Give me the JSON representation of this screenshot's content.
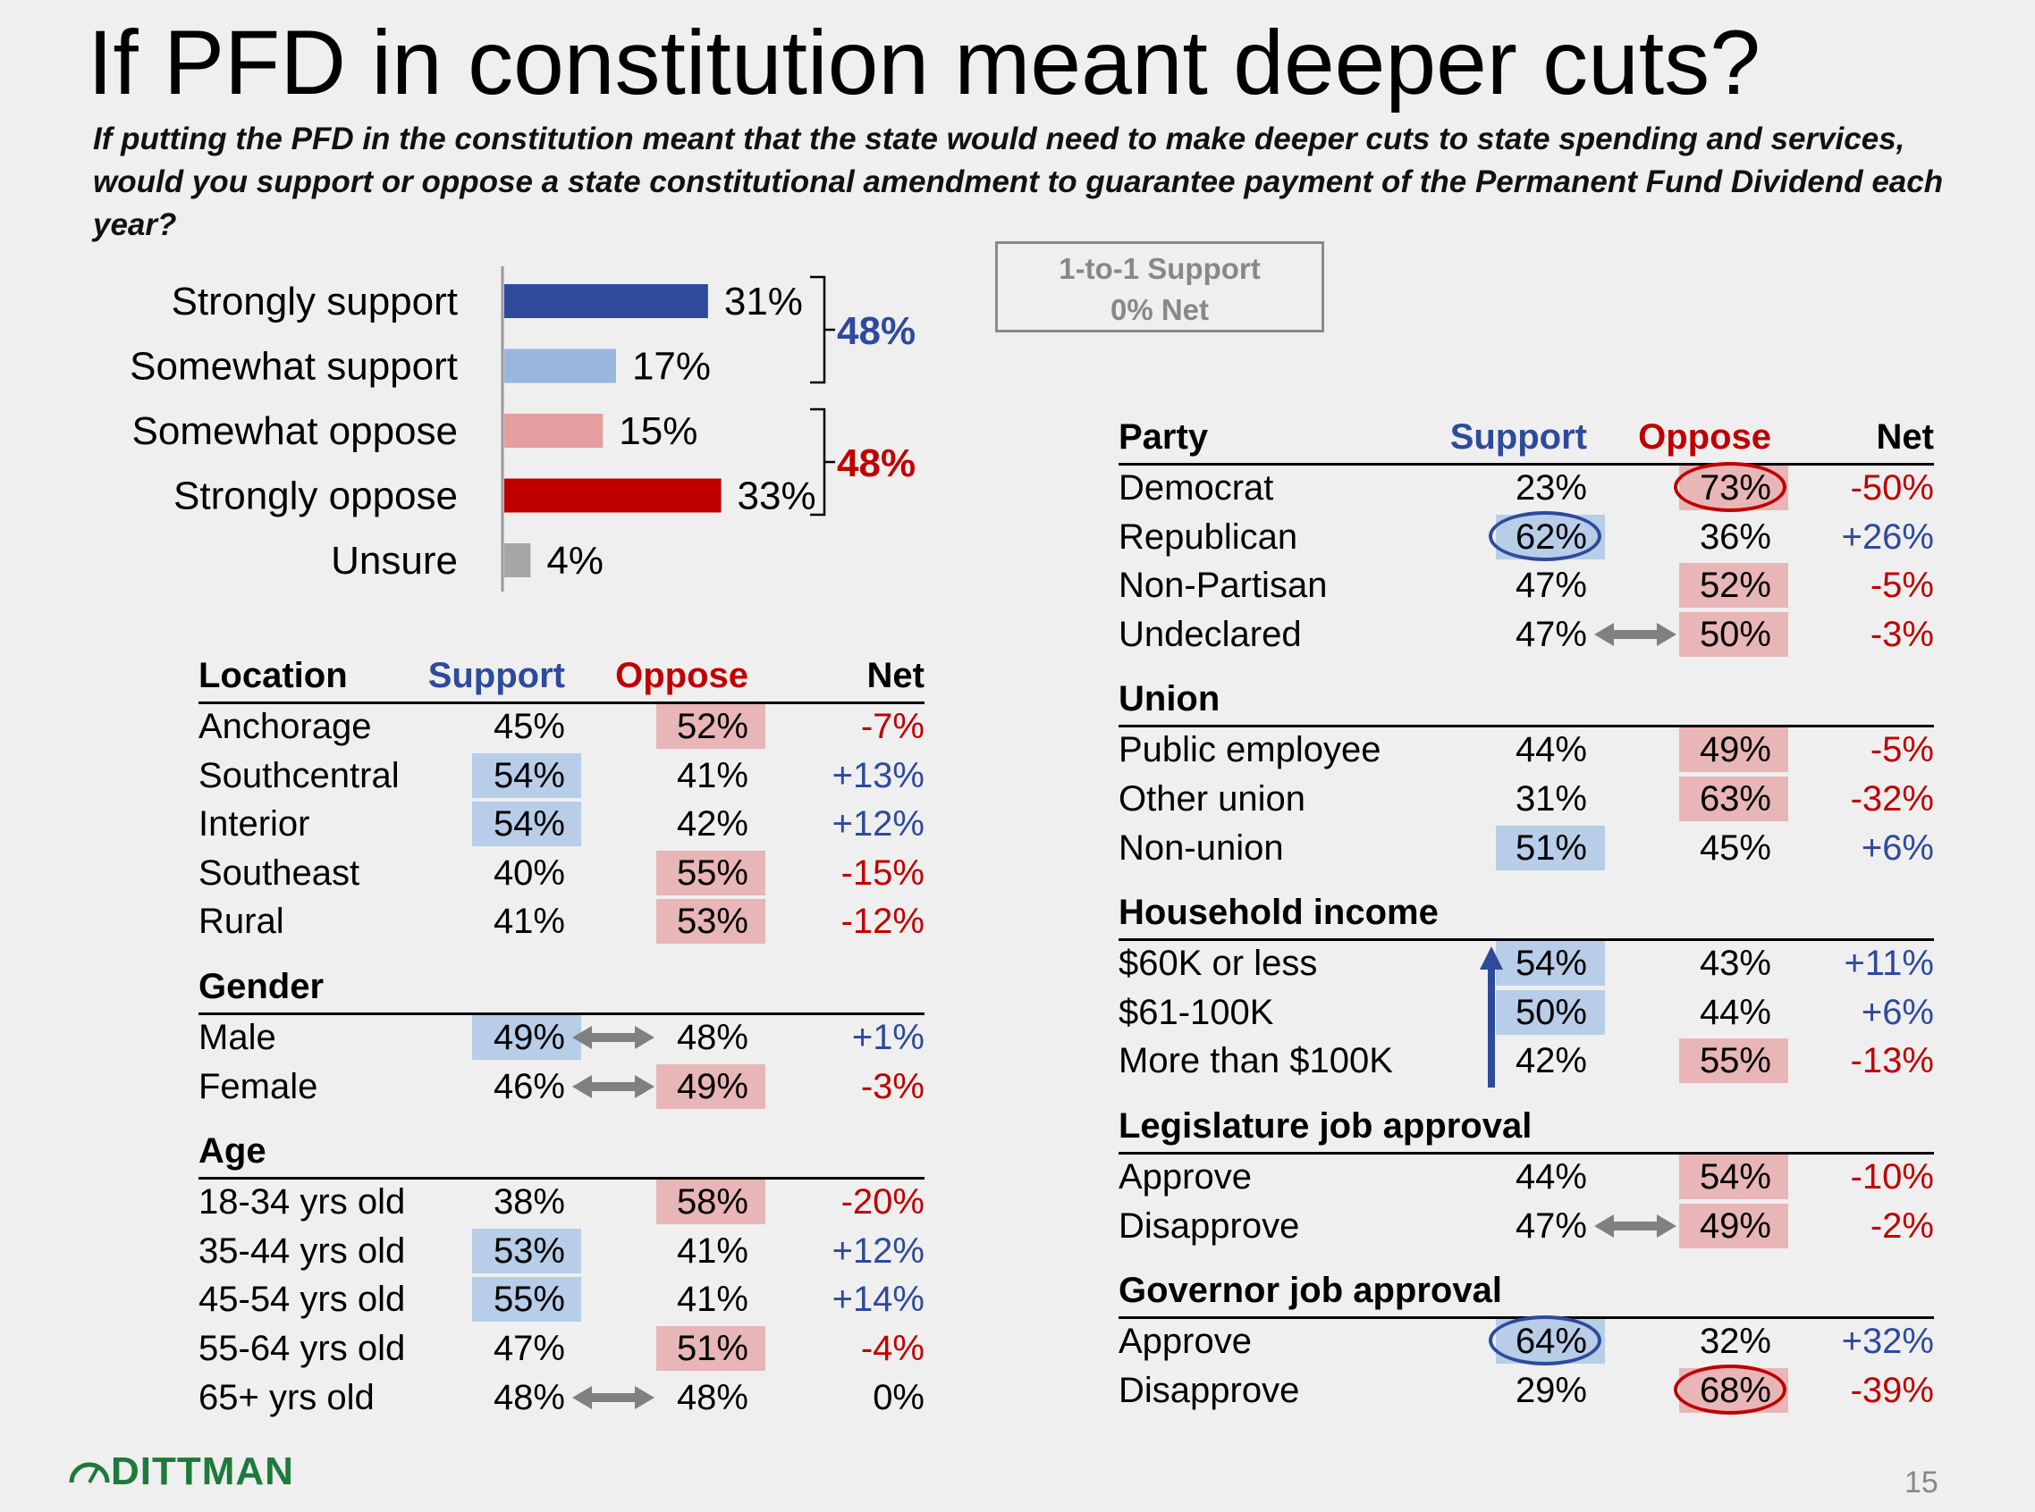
{
  "title": "If PFD in constitution meant deeper cuts?",
  "subtitle": "If putting the PFD in the constitution meant that the state would need to make deeper cuts to state spending and services, would you support or oppose a state constitutional amendment to guarantee payment of the Permanent Fund Dividend each year?",
  "summary_box": {
    "line1": "1-to-1 Support",
    "line2": "0% Net"
  },
  "chart_data": {
    "type": "bar",
    "orientation": "horizontal",
    "categories": [
      "Strongly support",
      "Somewhat support",
      "Somewhat oppose",
      "Strongly oppose",
      "Unsure"
    ],
    "values": [
      31,
      17,
      15,
      33,
      4
    ],
    "value_labels": [
      "31%",
      "17%",
      "15%",
      "33%",
      "4%"
    ],
    "bar_colors": [
      "#2e4a9c",
      "#9ab6dc",
      "#e39f9f",
      "#c00000",
      "#a6a6a6"
    ],
    "brackets": [
      {
        "label": "48%",
        "color": "#2e4a9c"
      },
      {
        "label": "48%",
        "color": "#c00000"
      }
    ],
    "xlim": [
      0,
      35
    ]
  },
  "colors": {
    "support": "#2e4a9c",
    "oppose": "#c00000",
    "hl_support": "#b7cde8",
    "hl_oppose": "#e8b6b6"
  },
  "left_table": {
    "sections": [
      {
        "header": "Location",
        "sup": "Support",
        "opp": "Oppose",
        "net": "Net",
        "rows": [
          {
            "label": "Anchorage",
            "sup": "45%",
            "opp": "52%",
            "net": "-7%",
            "hl": "opp"
          },
          {
            "label": "Southcentral",
            "sup": "54%",
            "opp": "41%",
            "net": "+13%",
            "hl": "sup"
          },
          {
            "label": "Interior",
            "sup": "54%",
            "opp": "42%",
            "net": "+12%",
            "hl": "sup"
          },
          {
            "label": "Southeast",
            "sup": "40%",
            "opp": "55%",
            "net": "-15%",
            "hl": "opp"
          },
          {
            "label": "Rural",
            "sup": "41%",
            "opp": "53%",
            "net": "-12%",
            "hl": "opp"
          }
        ]
      },
      {
        "header": "Gender",
        "rows": [
          {
            "label": "Male",
            "sup": "49%",
            "opp": "48%",
            "net": "+1%",
            "hl": "sup",
            "arrow": true
          },
          {
            "label": "Female",
            "sup": "46%",
            "opp": "49%",
            "net": "-3%",
            "hl": "opp",
            "arrow": true
          }
        ]
      },
      {
        "header": "Age",
        "rows": [
          {
            "label": "18-34 yrs old",
            "sup": "38%",
            "opp": "58%",
            "net": "-20%",
            "hl": "opp"
          },
          {
            "label": "35-44 yrs old",
            "sup": "53%",
            "opp": "41%",
            "net": "+12%",
            "hl": "sup"
          },
          {
            "label": "45-54 yrs old",
            "sup": "55%",
            "opp": "41%",
            "net": "+14%",
            "hl": "sup"
          },
          {
            "label": "55-64 yrs old",
            "sup": "47%",
            "opp": "51%",
            "net": "-4%",
            "hl": "opp"
          },
          {
            "label": "65+ yrs old",
            "sup": "48%",
            "opp": "48%",
            "net": "0%",
            "hl": "none",
            "arrow": true
          }
        ]
      }
    ]
  },
  "right_table": {
    "sections": [
      {
        "header": "Party",
        "sup": "Support",
        "opp": "Oppose",
        "net": "Net",
        "rows": [
          {
            "label": "Democrat",
            "sup": "23%",
            "opp": "73%",
            "net": "-50%",
            "hl": "opp",
            "circle": "opp"
          },
          {
            "label": "Republican",
            "sup": "62%",
            "opp": "36%",
            "net": "+26%",
            "hl": "sup",
            "circle": "sup"
          },
          {
            "label": "Non-Partisan",
            "sup": "47%",
            "opp": "52%",
            "net": "-5%",
            "hl": "opp"
          },
          {
            "label": "Undeclared",
            "sup": "47%",
            "opp": "50%",
            "net": "-3%",
            "hl": "opp",
            "arrow": true
          }
        ]
      },
      {
        "header": "Union",
        "rows": [
          {
            "label": "Public employee",
            "sup": "44%",
            "opp": "49%",
            "net": "-5%",
            "hl": "opp"
          },
          {
            "label": "Other union",
            "sup": "31%",
            "opp": "63%",
            "net": "-32%",
            "hl": "opp"
          },
          {
            "label": "Non-union",
            "sup": "51%",
            "opp": "45%",
            "net": "+6%",
            "hl": "sup"
          }
        ]
      },
      {
        "header": "Household income",
        "uparrow": true,
        "rows": [
          {
            "label": "$60K or less",
            "sup": "54%",
            "opp": "43%",
            "net": "+11%",
            "hl": "sup"
          },
          {
            "label": "$61-100K",
            "sup": "50%",
            "opp": "44%",
            "net": "+6%",
            "hl": "sup"
          },
          {
            "label": "More than $100K",
            "sup": "42%",
            "opp": "55%",
            "net": "-13%",
            "hl": "opp"
          }
        ]
      },
      {
        "header": "Legislature job approval",
        "rows": [
          {
            "label": "Approve",
            "sup": "44%",
            "opp": "54%",
            "net": "-10%",
            "hl": "opp"
          },
          {
            "label": "Disapprove",
            "sup": "47%",
            "opp": "49%",
            "net": "-2%",
            "hl": "opp",
            "arrow": true
          }
        ]
      },
      {
        "header": "Governor job approval",
        "rows": [
          {
            "label": "Approve",
            "sup": "64%",
            "opp": "32%",
            "net": "+32%",
            "hl": "sup",
            "circle": "sup"
          },
          {
            "label": "Disapprove",
            "sup": "29%",
            "opp": "68%",
            "net": "-39%",
            "hl": "opp",
            "circle": "opp"
          }
        ]
      }
    ]
  },
  "logo": "DITTMAN",
  "page_number": "15"
}
